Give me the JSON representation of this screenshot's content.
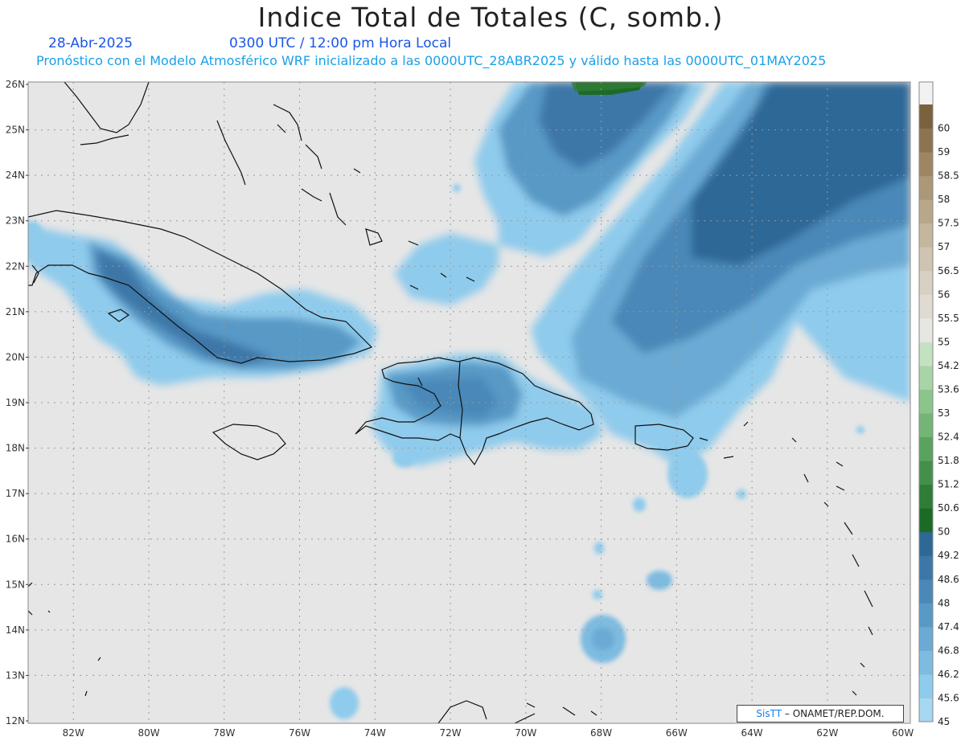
{
  "header": {
    "title": "Indice Total de Totales (C, somb.)",
    "date": "28-Abr-2025",
    "time": "0300 UTC / 12:00 pm Hora Local",
    "description": "Pronóstico con el Modelo Atmosférico WRF inicializado a las 0000UTC_28ABR2025 y válido hasta las  0000UTC_01MAY2025"
  },
  "map": {
    "lat_labels": [
      "26N",
      "25N",
      "24N",
      "23N",
      "22N",
      "21N",
      "20N",
      "19N",
      "18N",
      "17N",
      "16N",
      "15N",
      "14N",
      "13N",
      "12N"
    ],
    "lon_labels": [
      "82W",
      "80W",
      "78W",
      "76W",
      "74W",
      "72W",
      "70W",
      "68W",
      "66W",
      "64W",
      "62W",
      "60W"
    ],
    "lat_range": [
      12,
      26
    ],
    "lon_range": [
      -83.2,
      -59.8
    ],
    "grid": true,
    "background_color": "#e6e6e6",
    "coastline_color": "#111111"
  },
  "colorbar": {
    "levels": [
      "45",
      "45.6",
      "46.2",
      "46.8",
      "47.4",
      "48",
      "48.6",
      "49.2",
      "50",
      "50.6",
      "51.2",
      "51.8",
      "52.4",
      "53",
      "53.6",
      "54.2",
      "55",
      "55.5",
      "56",
      "56.5",
      "57",
      "57.5",
      "58",
      "58.5",
      "59",
      "60"
    ],
    "colors": [
      "#a6d8f2",
      "#8fcbec",
      "#7dbbe0",
      "#6aaad4",
      "#5999c6",
      "#4a88b8",
      "#3c77a8",
      "#2e6896",
      "#1b6b27",
      "#2f7d37",
      "#449049",
      "#5aa35d",
      "#72b574",
      "#8cc58b",
      "#a8d5a7",
      "#c4e2c2",
      "#e8e6e1",
      "#e0dbd2",
      "#d8d0c2",
      "#cfc4b1",
      "#c5b69e",
      "#b9a78a",
      "#ac9776",
      "#9e8662",
      "#8d744e",
      "#7a623c"
    ]
  },
  "credit": {
    "brand": "SisTT",
    "text": " – ONAMET/REP.DOM."
  }
}
